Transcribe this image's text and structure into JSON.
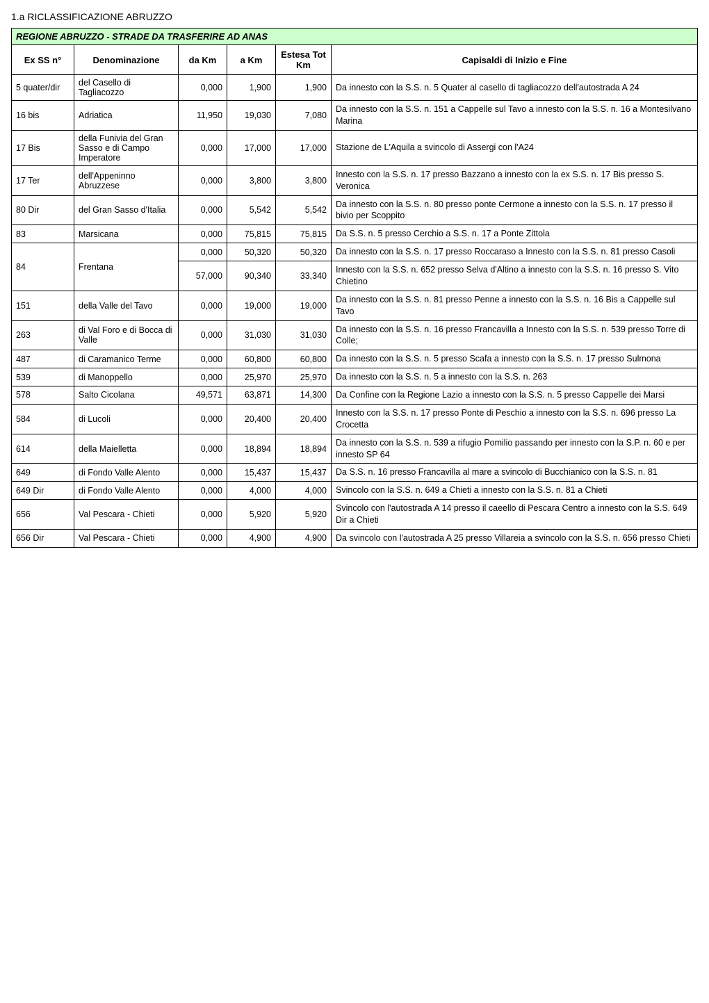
{
  "doc_title": "1.a RICLASSIFICAZIONE ABRUZZO",
  "table_header": "REGIONE ABRUZZO - STRADE DA TRASFERIRE AD ANAS",
  "columns": {
    "c1": "Ex SS n°",
    "c2": "Denominazione",
    "c3": "da Km",
    "c4": "a Km",
    "c5": "Estesa Tot Km",
    "c6": "Capisaldi di Inizio e Fine"
  },
  "colors": {
    "header_bg": "#ccffcc",
    "border": "#000000",
    "page_bg": "#ffffff",
    "text": "#000000"
  },
  "rows": [
    {
      "ex": "5 quater/dir",
      "den": "del Casello di Tagliacozzo",
      "da": "0,000",
      "a": "1,900",
      "est": "1,900",
      "cap": "Da innesto con la S.S. n. 5 Quater al casello di tagliacozzo dell'autostrada A 24",
      "rs": 1
    },
    {
      "ex": "16 bis",
      "den": "Adriatica",
      "da": "11,950",
      "a": "19,030",
      "est": "7,080",
      "cap": "Da innesto con la S.S. n. 151 a Cappelle sul Tavo a innesto con la S.S. n. 16 a Montesilvano Marina",
      "rs": 1
    },
    {
      "ex": "17 Bis",
      "den": "della Funivia del Gran Sasso e di Campo Imperatore",
      "da": "0,000",
      "a": "17,000",
      "est": "17,000",
      "cap": "Stazione de L'Aquila a svincolo di Assergi con l'A24",
      "rs": 1
    },
    {
      "ex": "17 Ter",
      "den": "dell'Appeninno Abruzzese",
      "da": "0,000",
      "a": "3,800",
      "est": "3,800",
      "cap": "Innesto con la S.S. n. 17 presso Bazzano a innesto con la ex S.S. n. 17 Bis presso S. Veronica",
      "rs": 1
    },
    {
      "ex": "80 Dir",
      "den": "del Gran Sasso d'Italia",
      "da": "0,000",
      "a": "5,542",
      "est": "5,542",
      "cap": "Da innesto con la S.S. n. 80 presso ponte Cermone a innesto con la S.S.  n. 17 presso il bivio per Scoppito",
      "rs": 1
    },
    {
      "ex": "83",
      "den": "Marsicana",
      "da": "0,000",
      "a": "75,815",
      "est": "75,815",
      "cap": "Da S.S. n. 5 presso Cerchio a S.S. n.  17 a Ponte Zittola",
      "rs": 1
    },
    {
      "ex": "84",
      "den": "Frentana",
      "da": "0,000",
      "a": "50,320",
      "est": "50,320",
      "cap": "Da innesto con la S.S. n. 17 presso Roccaraso a Innesto con la S.S. n.  81 presso Casoli",
      "rs": 2
    },
    {
      "ex": "",
      "den": "",
      "da": "57,000",
      "a": "90,340",
      "est": "33,340",
      "cap": "Innesto con la S.S. n. 652 presso Selva d'Altino a innesto con la S.S. n. 16 presso S. Vito Chietino",
      "rs": 0
    },
    {
      "ex": "151",
      "den": "della Valle del Tavo",
      "da": "0,000",
      "a": "19,000",
      "est": "19,000",
      "cap": "Da innesto con la S.S. n. 81 presso Penne a innesto con la S.S. n. 16 Bis a Cappelle sul Tavo",
      "rs": 1
    },
    {
      "ex": "263",
      "den": "di Val Foro e di Bocca di Valle",
      "da": "0,000",
      "a": "31,030",
      "est": "31,030",
      "cap": "Da innesto con la S.S. n. 16 presso Francavilla a Innesto con la S.S. n. 539 presso Torre di Colle;",
      "rs": 1
    },
    {
      "ex": "487",
      "den": "di Caramanico Terme",
      "da": "0,000",
      "a": "60,800",
      "est": "60,800",
      "cap": "Da innesto con la S.S. n. 5 presso Scafa a innesto con la S.S. n. 17 presso Sulmona",
      "rs": 1
    },
    {
      "ex": "539",
      "den": "di Manoppello",
      "da": "0,000",
      "a": "25,970",
      "est": "25,970",
      "cap": "Da innesto con la S.S. n. 5 a innesto con la S.S. n. 263",
      "rs": 1
    },
    {
      "ex": "578",
      "den": "Salto Cicolana",
      "da": "49,571",
      "a": "63,871",
      "est": "14,300",
      "cap": "Da Confine con la Regione Lazio a innesto con la S.S. n. 5 presso Cappelle dei Marsi",
      "rs": 1
    },
    {
      "ex": "584",
      "den": "di Lucoli",
      "da": "0,000",
      "a": "20,400",
      "est": "20,400",
      "cap": "Innesto con la S.S. n. 17 presso Ponte  di Peschio a innesto con la S.S. n. 696 presso La Crocetta",
      "rs": 1
    },
    {
      "ex": "614",
      "den": "della Maielletta",
      "da": "0,000",
      "a": "18,894",
      "est": "18,894",
      "cap": "Da innesto con la S.S. n. 539 a rifugio Pomilio passando per innesto con la S.P. n. 60 e per innesto SP 64",
      "rs": 1
    },
    {
      "ex": "649",
      "den": "di Fondo Valle Alento",
      "da": "0,000",
      "a": "15,437",
      "est": "15,437",
      "cap": "Da S.S. n. 16 presso Francavilla al mare a svincolo di Bucchianico con la S.S. n. 81",
      "rs": 1
    },
    {
      "ex": "649 Dir",
      "den": "di Fondo Valle Alento",
      "da": "0,000",
      "a": "4,000",
      "est": "4,000",
      "cap": "Svincolo con la S.S. n. 649 a Chieti a innesto con la S.S. n. 81 a Chieti",
      "rs": 1
    },
    {
      "ex": "656",
      "den": "Val Pescara - Chieti",
      "da": "0,000",
      "a": "5,920",
      "est": "5,920",
      "cap": "Svincolo con l'autostrada A 14 presso il caeello di Pescara Centro a innesto con la S.S. 649 Dir a Chieti",
      "rs": 1
    },
    {
      "ex": "656 Dir",
      "den": "Val Pescara - Chieti",
      "da": "0,000",
      "a": "4,900",
      "est": "4,900",
      "cap": "Da svincolo con l'autostrada A 25 presso Villareia a svincolo con la S.S. n. 656 presso Chieti",
      "rs": 1
    }
  ]
}
